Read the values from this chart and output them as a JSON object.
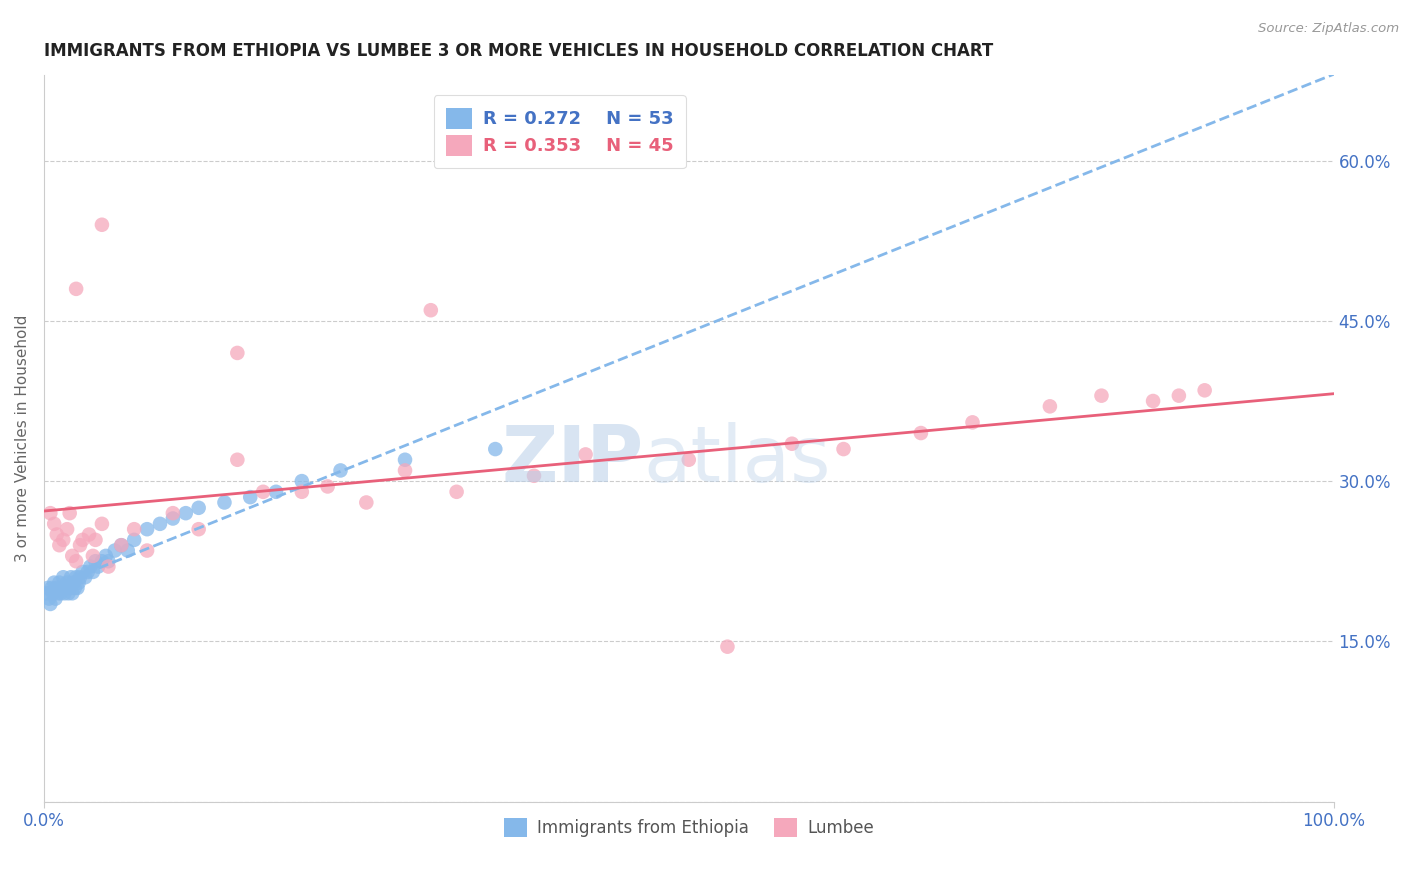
{
  "title": "IMMIGRANTS FROM ETHIOPIA VS LUMBEE 3 OR MORE VEHICLES IN HOUSEHOLD CORRELATION CHART",
  "source_text": "Source: ZipAtlas.com",
  "ylabel": "3 or more Vehicles in Household",
  "r_ethiopia": 0.272,
  "n_ethiopia": 53,
  "r_lumbee": 0.353,
  "n_lumbee": 45,
  "legend_ethiopia": "Immigrants from Ethiopia",
  "legend_lumbee": "Lumbee",
  "color_ethiopia": "#85B8EA",
  "color_lumbee": "#F5A8BC",
  "line_color_ethiopia": "#85B8EA",
  "line_color_lumbee": "#E8607A",
  "title_color": "#222222",
  "axis_label_color": "#4472C4",
  "ethiopia_x": [
    0.002,
    0.003,
    0.004,
    0.005,
    0.006,
    0.007,
    0.008,
    0.009,
    0.01,
    0.011,
    0.012,
    0.013,
    0.014,
    0.015,
    0.016,
    0.017,
    0.018,
    0.019,
    0.02,
    0.021,
    0.022,
    0.023,
    0.024,
    0.025,
    0.026,
    0.027,
    0.028,
    0.03,
    0.032,
    0.034,
    0.036,
    0.038,
    0.04,
    0.042,
    0.045,
    0.048,
    0.05,
    0.055,
    0.06,
    0.065,
    0.07,
    0.08,
    0.09,
    0.1,
    0.11,
    0.12,
    0.14,
    0.16,
    0.18,
    0.2,
    0.23,
    0.28,
    0.35
  ],
  "ethiopia_y": [
    0.195,
    0.2,
    0.19,
    0.185,
    0.2,
    0.195,
    0.205,
    0.19,
    0.2,
    0.195,
    0.205,
    0.195,
    0.2,
    0.21,
    0.195,
    0.2,
    0.205,
    0.195,
    0.2,
    0.21,
    0.195,
    0.205,
    0.2,
    0.21,
    0.2,
    0.205,
    0.21,
    0.215,
    0.21,
    0.215,
    0.22,
    0.215,
    0.225,
    0.22,
    0.225,
    0.23,
    0.225,
    0.235,
    0.24,
    0.235,
    0.245,
    0.255,
    0.26,
    0.265,
    0.27,
    0.275,
    0.28,
    0.285,
    0.29,
    0.3,
    0.31,
    0.32,
    0.33
  ],
  "lumbee_x": [
    0.005,
    0.008,
    0.01,
    0.012,
    0.015,
    0.018,
    0.02,
    0.022,
    0.025,
    0.028,
    0.03,
    0.035,
    0.038,
    0.04,
    0.045,
    0.05,
    0.06,
    0.07,
    0.08,
    0.1,
    0.12,
    0.15,
    0.17,
    0.2,
    0.22,
    0.25,
    0.28,
    0.32,
    0.38,
    0.42,
    0.5,
    0.58,
    0.62,
    0.68,
    0.72,
    0.78,
    0.82,
    0.86,
    0.88,
    0.9,
    0.53,
    0.045,
    0.025,
    0.3,
    0.15
  ],
  "lumbee_y": [
    0.27,
    0.26,
    0.25,
    0.24,
    0.245,
    0.255,
    0.27,
    0.23,
    0.225,
    0.24,
    0.245,
    0.25,
    0.23,
    0.245,
    0.26,
    0.22,
    0.24,
    0.255,
    0.235,
    0.27,
    0.255,
    0.32,
    0.29,
    0.29,
    0.295,
    0.28,
    0.31,
    0.29,
    0.305,
    0.325,
    0.32,
    0.335,
    0.33,
    0.345,
    0.355,
    0.37,
    0.38,
    0.375,
    0.38,
    0.385,
    0.145,
    0.54,
    0.48,
    0.46,
    0.42
  ],
  "xlim": [
    0.0,
    1.0
  ],
  "ylim": [
    0.0,
    0.68
  ],
  "right_ytick_vals": [
    0.0,
    0.15,
    0.3,
    0.45,
    0.6
  ],
  "right_ytick_labels": [
    "",
    "15.0%",
    "30.0%",
    "45.0%",
    "60.0%"
  ],
  "xtick_vals": [
    0.0,
    1.0
  ],
  "xtick_labels": [
    "0.0%",
    "100.0%"
  ]
}
